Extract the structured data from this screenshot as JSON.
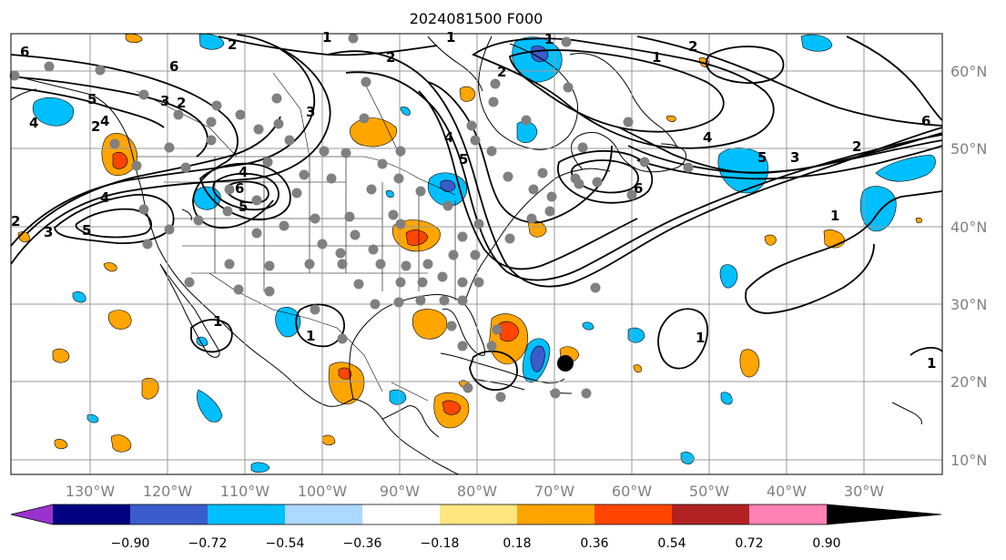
{
  "title": "2024081500 F000",
  "map": {
    "lon_range": [
      -140,
      5
    ],
    "lat_range": [
      8,
      65
    ],
    "lat_ticks": [
      "60°N",
      "50°N",
      "40°N",
      "30°N",
      "20°N",
      "10°N"
    ],
    "lon_ticks": [
      "130°W",
      "120°W",
      "110°W",
      "100°W",
      "90°W",
      "80°W",
      "70°W",
      "60°W",
      "50°W",
      "40°W",
      "30°W"
    ],
    "contour_color": "#000000",
    "station_color": "#808080",
    "storm_marker_color": "#000000"
  },
  "colorbar": {
    "tick_labels": [
      "−0.90",
      "−0.72",
      "−0.54",
      "−0.36",
      "−0.18",
      "0.18",
      "0.36",
      "0.54",
      "0.72",
      "0.90"
    ],
    "colors": [
      "#9932cc",
      "#000080",
      "#3a5ccc",
      "#00bfff",
      "#add8ff",
      "#ffffff",
      "#ffe680",
      "#ffa500",
      "#ff4500",
      "#b22222",
      "#ff82b4"
    ]
  },
  "contour_labels": [
    "6",
    "5",
    "4",
    "3",
    "2",
    "1",
    "2",
    "6",
    "5",
    "4",
    "3",
    "2",
    "4",
    "6",
    "5",
    "3",
    "2",
    "1",
    "4",
    "2",
    "1",
    "2",
    "1",
    "4",
    "6",
    "5",
    "3",
    "2",
    "1",
    "6",
    "1",
    "1",
    "1",
    "1",
    "4",
    "2",
    "5"
  ]
}
